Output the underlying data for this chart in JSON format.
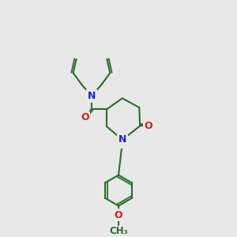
{
  "bg": "#e8e8e8",
  "bc": "#2d6b2d",
  "nc": "#2020cc",
  "oc": "#cc2020",
  "lw": 1.5,
  "fs": 9.0,
  "figsize": [
    3.0,
    3.0
  ],
  "dpi": 100,
  "xlim": [
    0,
    10
  ],
  "ylim": [
    0,
    15
  ]
}
